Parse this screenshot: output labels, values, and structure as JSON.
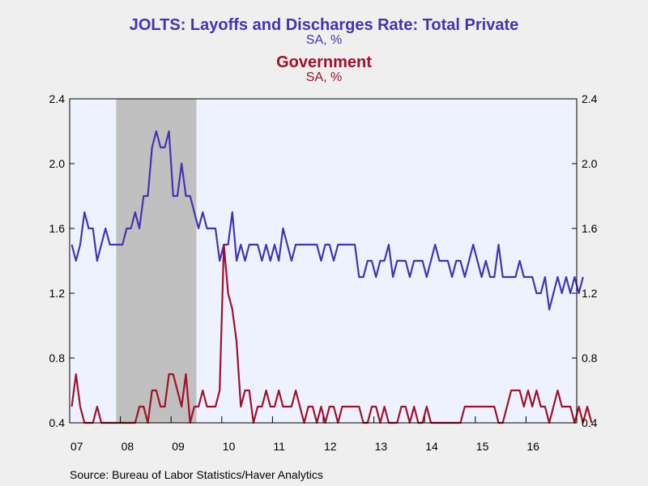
{
  "header": {
    "title_private": "JOLTS: Layoffs and Discharges Rate: Total Private",
    "subtitle_private": "SA, %",
    "title_government": "Government",
    "subtitle_government": "SA, %"
  },
  "footer": {
    "source": "Source:  Bureau of Labor Statistics/Haver Analytics"
  },
  "chart_data": {
    "type": "line",
    "title": "JOLTS: Layoffs and Discharges Rate: Total Private / Government",
    "ylim": [
      0.4,
      2.4
    ],
    "y_ticks": [
      "0.4",
      "0.8",
      "1.2",
      "1.6",
      "2.0",
      "2.4"
    ],
    "x_tick_labels": [
      "07",
      "08",
      "09",
      "10",
      "11",
      "12",
      "13",
      "14",
      "15",
      "16"
    ],
    "x_start": "2007-01",
    "x_end": "2016-12",
    "frequency": "monthly",
    "recession_shading": {
      "start": "2007-12",
      "end": "2009-06",
      "color": "#c0c0c0"
    },
    "grid": false,
    "series": [
      {
        "name": "JOLTS: Layoffs and Discharges Rate: Total Private",
        "color": "#4433b3",
        "values": [
          1.5,
          1.4,
          1.5,
          1.7,
          1.6,
          1.6,
          1.4,
          1.5,
          1.6,
          1.5,
          1.5,
          1.5,
          1.5,
          1.6,
          1.6,
          1.7,
          1.6,
          1.8,
          1.8,
          2.1,
          2.2,
          2.1,
          2.1,
          2.2,
          1.8,
          1.8,
          2.0,
          1.8,
          1.8,
          1.7,
          1.6,
          1.7,
          1.6,
          1.6,
          1.6,
          1.4,
          1.5,
          1.5,
          1.7,
          1.4,
          1.5,
          1.4,
          1.5,
          1.5,
          1.5,
          1.4,
          1.5,
          1.4,
          1.5,
          1.4,
          1.6,
          1.5,
          1.4,
          1.5,
          1.5,
          1.5,
          1.5,
          1.5,
          1.5,
          1.4,
          1.5,
          1.5,
          1.4,
          1.5,
          1.5,
          1.5,
          1.5,
          1.5,
          1.3,
          1.3,
          1.4,
          1.4,
          1.3,
          1.4,
          1.4,
          1.5,
          1.3,
          1.4,
          1.4,
          1.4,
          1.3,
          1.4,
          1.4,
          1.4,
          1.3,
          1.4,
          1.5,
          1.4,
          1.4,
          1.4,
          1.3,
          1.4,
          1.4,
          1.3,
          1.4,
          1.5,
          1.4,
          1.3,
          1.4,
          1.3,
          1.3,
          1.5,
          1.3,
          1.3,
          1.3,
          1.3,
          1.4,
          1.3,
          1.3,
          1.3,
          1.2,
          1.2,
          1.3,
          1.1,
          1.2,
          1.3,
          1.2,
          1.3,
          1.2,
          1.3,
          1.2,
          1.3
        ]
      },
      {
        "name": "Government",
        "color": "#a0112b",
        "values": [
          0.5,
          0.7,
          0.5,
          0.4,
          0.4,
          0.4,
          0.5,
          0.4,
          0.4,
          0.4,
          0.4,
          0.4,
          0.4,
          0.4,
          0.4,
          0.4,
          0.5,
          0.5,
          0.4,
          0.6,
          0.6,
          0.5,
          0.5,
          0.7,
          0.7,
          0.6,
          0.5,
          0.7,
          0.4,
          0.5,
          0.5,
          0.6,
          0.5,
          0.5,
          0.5,
          0.6,
          1.5,
          1.2,
          1.1,
          0.9,
          0.5,
          0.6,
          0.6,
          0.4,
          0.5,
          0.5,
          0.6,
          0.5,
          0.5,
          0.6,
          0.5,
          0.5,
          0.5,
          0.6,
          0.5,
          0.4,
          0.5,
          0.5,
          0.4,
          0.5,
          0.4,
          0.5,
          0.5,
          0.4,
          0.5,
          0.5,
          0.5,
          0.5,
          0.5,
          0.4,
          0.4,
          0.5,
          0.5,
          0.4,
          0.5,
          0.4,
          0.4,
          0.4,
          0.5,
          0.5,
          0.4,
          0.5,
          0.4,
          0.4,
          0.5,
          0.4,
          0.4,
          0.4,
          0.4,
          0.4,
          0.4,
          0.4,
          0.4,
          0.5,
          0.5,
          0.5,
          0.5,
          0.5,
          0.5,
          0.5,
          0.5,
          0.4,
          0.4,
          0.5,
          0.6,
          0.6,
          0.6,
          0.5,
          0.6,
          0.5,
          0.6,
          0.5,
          0.5,
          0.4,
          0.5,
          0.6,
          0.5,
          0.5,
          0.5,
          0.4,
          0.5,
          0.4,
          0.5,
          0.4
        ]
      }
    ]
  }
}
